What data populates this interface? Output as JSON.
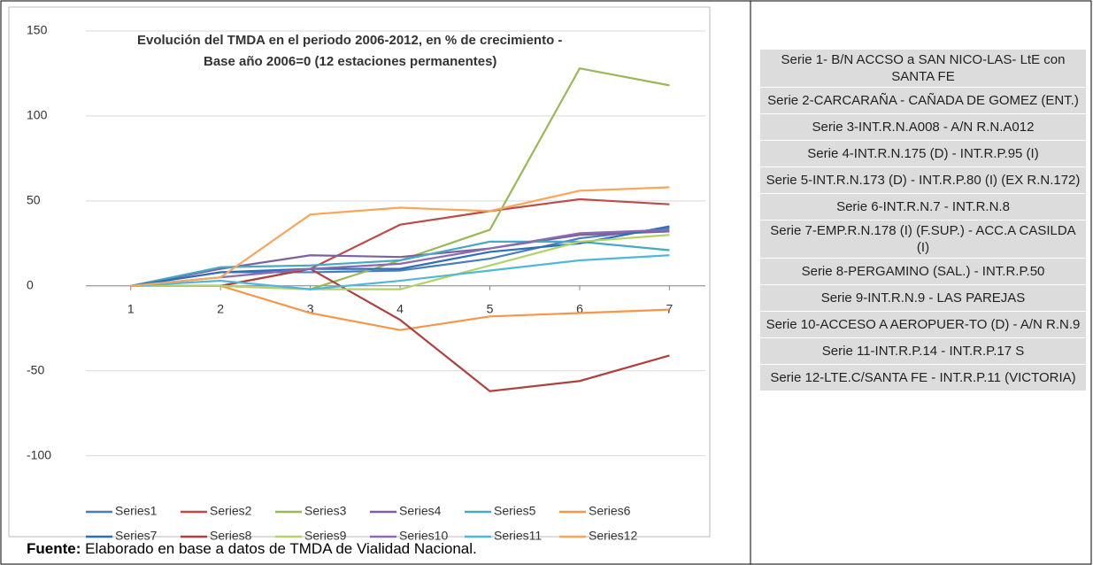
{
  "chart_data": {
    "type": "line",
    "title": [
      "Evolución del TMDA en el periodo 2006-2012, en % de crecimiento -",
      "Base año 2006=0 (12 estaciones permanentes)"
    ],
    "x": [
      1,
      2,
      3,
      4,
      5,
      6,
      7
    ],
    "xlim": [
      0.5,
      7.4
    ],
    "xticks": [
      1,
      2,
      3,
      4,
      5,
      6,
      7
    ],
    "ylim": [
      -145,
      160
    ],
    "yticks": [
      -100,
      -50,
      0,
      50,
      100,
      150
    ],
    "grid": true,
    "legend": "bottom",
    "series": [
      {
        "name": "Series1",
        "color": "#4a7ebb",
        "values": [
          0,
          8,
          8,
          9,
          16,
          28,
          34
        ]
      },
      {
        "name": "Series2",
        "color": "#be4b48",
        "values": [
          0,
          0,
          10,
          36,
          44,
          51,
          48
        ]
      },
      {
        "name": "Series3",
        "color": "#98b954",
        "values": [
          0,
          0,
          -2,
          15,
          33,
          128,
          118
        ]
      },
      {
        "name": "Series4",
        "color": "#7d60a0",
        "values": [
          0,
          10,
          18,
          17,
          22,
          30,
          32
        ]
      },
      {
        "name": "Series5",
        "color": "#46aac5",
        "values": [
          0,
          11,
          12,
          15,
          26,
          26,
          21
        ]
      },
      {
        "name": "Series6",
        "color": "#f79646",
        "values": [
          0,
          0,
          -16,
          -26,
          -18,
          -16,
          -14
        ]
      },
      {
        "name": "Series7",
        "color": "#2c6fb8",
        "values": [
          0,
          8,
          10,
          10,
          20,
          25,
          35
        ]
      },
      {
        "name": "Series8",
        "color": "#b0403d",
        "values": [
          0,
          0,
          10,
          -20,
          -62,
          -56,
          -41
        ]
      },
      {
        "name": "Series9",
        "color": "#b3d36a",
        "values": [
          0,
          0,
          -2,
          -2,
          12,
          26,
          30
        ]
      },
      {
        "name": "Series10",
        "color": "#8a6bb0",
        "values": [
          0,
          5,
          10,
          13,
          22,
          31,
          33
        ]
      },
      {
        "name": "Series11",
        "color": "#4fb8d8",
        "values": [
          0,
          3,
          -2,
          3,
          9,
          15,
          18
        ]
      },
      {
        "name": "Series12",
        "color": "#f9a55a",
        "values": [
          0,
          5,
          42,
          46,
          44,
          56,
          58
        ]
      }
    ]
  },
  "source": {
    "label": "Fuente:",
    "text": " Elaborado en base a datos de TMDA de Vialidad Nacional."
  },
  "legend_table": {
    "rows": [
      "Serie 1- B/N ACCSO a SAN NICO-LAS- LtE con SANTA FE",
      "Serie 2-CARCARAÑA - CAÑADA DE GOMEZ (ENT.)",
      "Serie 3-INT.R.N.A008 - A/N R.N.A012",
      "Serie 4-INT.R.N.175 (D) - INT.R.P.95 (I)",
      "Serie 5-INT.R.N.173 (D) - INT.R.P.80 (I) (EX R.N.172)",
      "Serie 6-INT.R.N.7 - INT.R.N.8",
      "Serie 7-EMP.R.N.178 (I) (F.SUP.) - ACC.A CASILDA (I)",
      "Serie 8-PERGAMINO (SAL.) - INT.R.P.50",
      "Serie 9-INT.R.N.9 - LAS PAREJAS",
      "Serie 10-ACCESO A AEROPUER-TO (D) - A/N R.N.9",
      "Serie 11-INT.R.P.14 - INT.R.P.17 S",
      "Serie 12-LTE.C/SANTA FE - INT.R.P.11 (VICTORIA)"
    ]
  }
}
